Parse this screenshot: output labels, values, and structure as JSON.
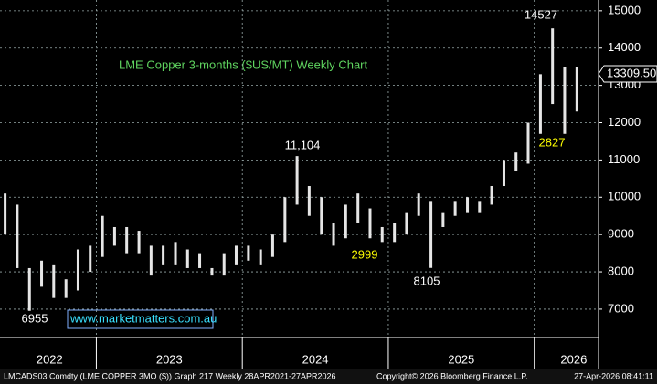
{
  "chart_data": {
    "type": "range-bar",
    "title": "LME Copper 3-months ($US/MT) Weekly Chart",
    "x": [
      2022.375,
      2022.458,
      2022.542,
      2022.625,
      2022.708,
      2022.792,
      2022.875,
      2022.958,
      2023.042,
      2023.125,
      2023.208,
      2023.292,
      2023.375,
      2023.458,
      2023.542,
      2023.625,
      2023.708,
      2023.792,
      2023.875,
      2023.958,
      2024.042,
      2024.125,
      2024.208,
      2024.292,
      2024.375,
      2024.458,
      2024.542,
      2024.625,
      2024.708,
      2024.792,
      2024.875,
      2024.958,
      2025.042,
      2025.125,
      2025.208,
      2025.292,
      2025.375,
      2025.458,
      2025.542,
      2025.625,
      2025.708,
      2025.792,
      2025.875,
      2025.958,
      2026.042,
      2026.125,
      2026.208,
      2026.292
    ],
    "high": [
      10100,
      9800,
      8100,
      8300,
      8200,
      7800,
      8600,
      8700,
      9500,
      9200,
      9200,
      9100,
      8700,
      8700,
      8800,
      8600,
      8500,
      8100,
      8500,
      8700,
      8700,
      8600,
      9000,
      10000,
      11104,
      10300,
      10000,
      9300,
      9800,
      10100,
      9700,
      9200,
      9300,
      9600,
      10100,
      9900,
      9600,
      9900,
      10000,
      9900,
      10300,
      11000,
      11200,
      12000,
      13300,
      14527,
      13500,
      13500
    ],
    "low": [
      9000,
      8100,
      6955,
      7600,
      7300,
      7300,
      7500,
      8000,
      8400,
      8700,
      8500,
      8500,
      7900,
      8200,
      8200,
      8100,
      8100,
      7900,
      7900,
      8200,
      8300,
      8200,
      8400,
      8800,
      9800,
      9500,
      9000,
      8700,
      8900,
      9300,
      8900,
      8800,
      8800,
      9000,
      9500,
      8105,
      9200,
      9500,
      9600,
      9600,
      9800,
      10300,
      10700,
      10900,
      11700,
      12500,
      11700,
      12300
    ],
    "color": "#e6e6e6",
    "xlim": [
      2022.34,
      2026.44
    ],
    "xticks": [
      2023,
      2024,
      2025,
      2026
    ],
    "year_labels": [
      {
        "value": 2022.68,
        "label": "2022"
      },
      {
        "value": 2023.5,
        "label": "2023"
      },
      {
        "value": 2024.5,
        "label": "2024"
      },
      {
        "value": 2025.5,
        "label": "2025"
      },
      {
        "value": 2026.27,
        "label": "2026"
      }
    ],
    "ylim": [
      6240,
      15290
    ],
    "yticks": [
      7000,
      8000,
      9000,
      10000,
      11000,
      12000,
      13000,
      14000,
      15000
    ],
    "grid": true,
    "last_price": {
      "value": 13309.5,
      "label": "13309.50"
    },
    "annotations": [
      {
        "text": "14527",
        "color": "#ffffff"
      },
      {
        "text": "11,104",
        "color": "#ffffff"
      },
      {
        "text": "6955",
        "color": "#ffffff"
      },
      {
        "text": "8105",
        "color": "#ffffff"
      },
      {
        "text": "2999",
        "color": "#ffff00"
      },
      {
        "text": "2827",
        "color": "#ffff00"
      }
    ],
    "website": "www.marketmatters.com.au",
    "footer": {
      "security": "LMCADS03 Comdty (LME COPPER    3MO ($)) Graph 217 Weekly 28APR2021-27APR2026",
      "copyright": "Copyright© 2026 Bloomberg Finance L.P.",
      "timestamp": "27-Apr-2026 08:41:11"
    }
  }
}
